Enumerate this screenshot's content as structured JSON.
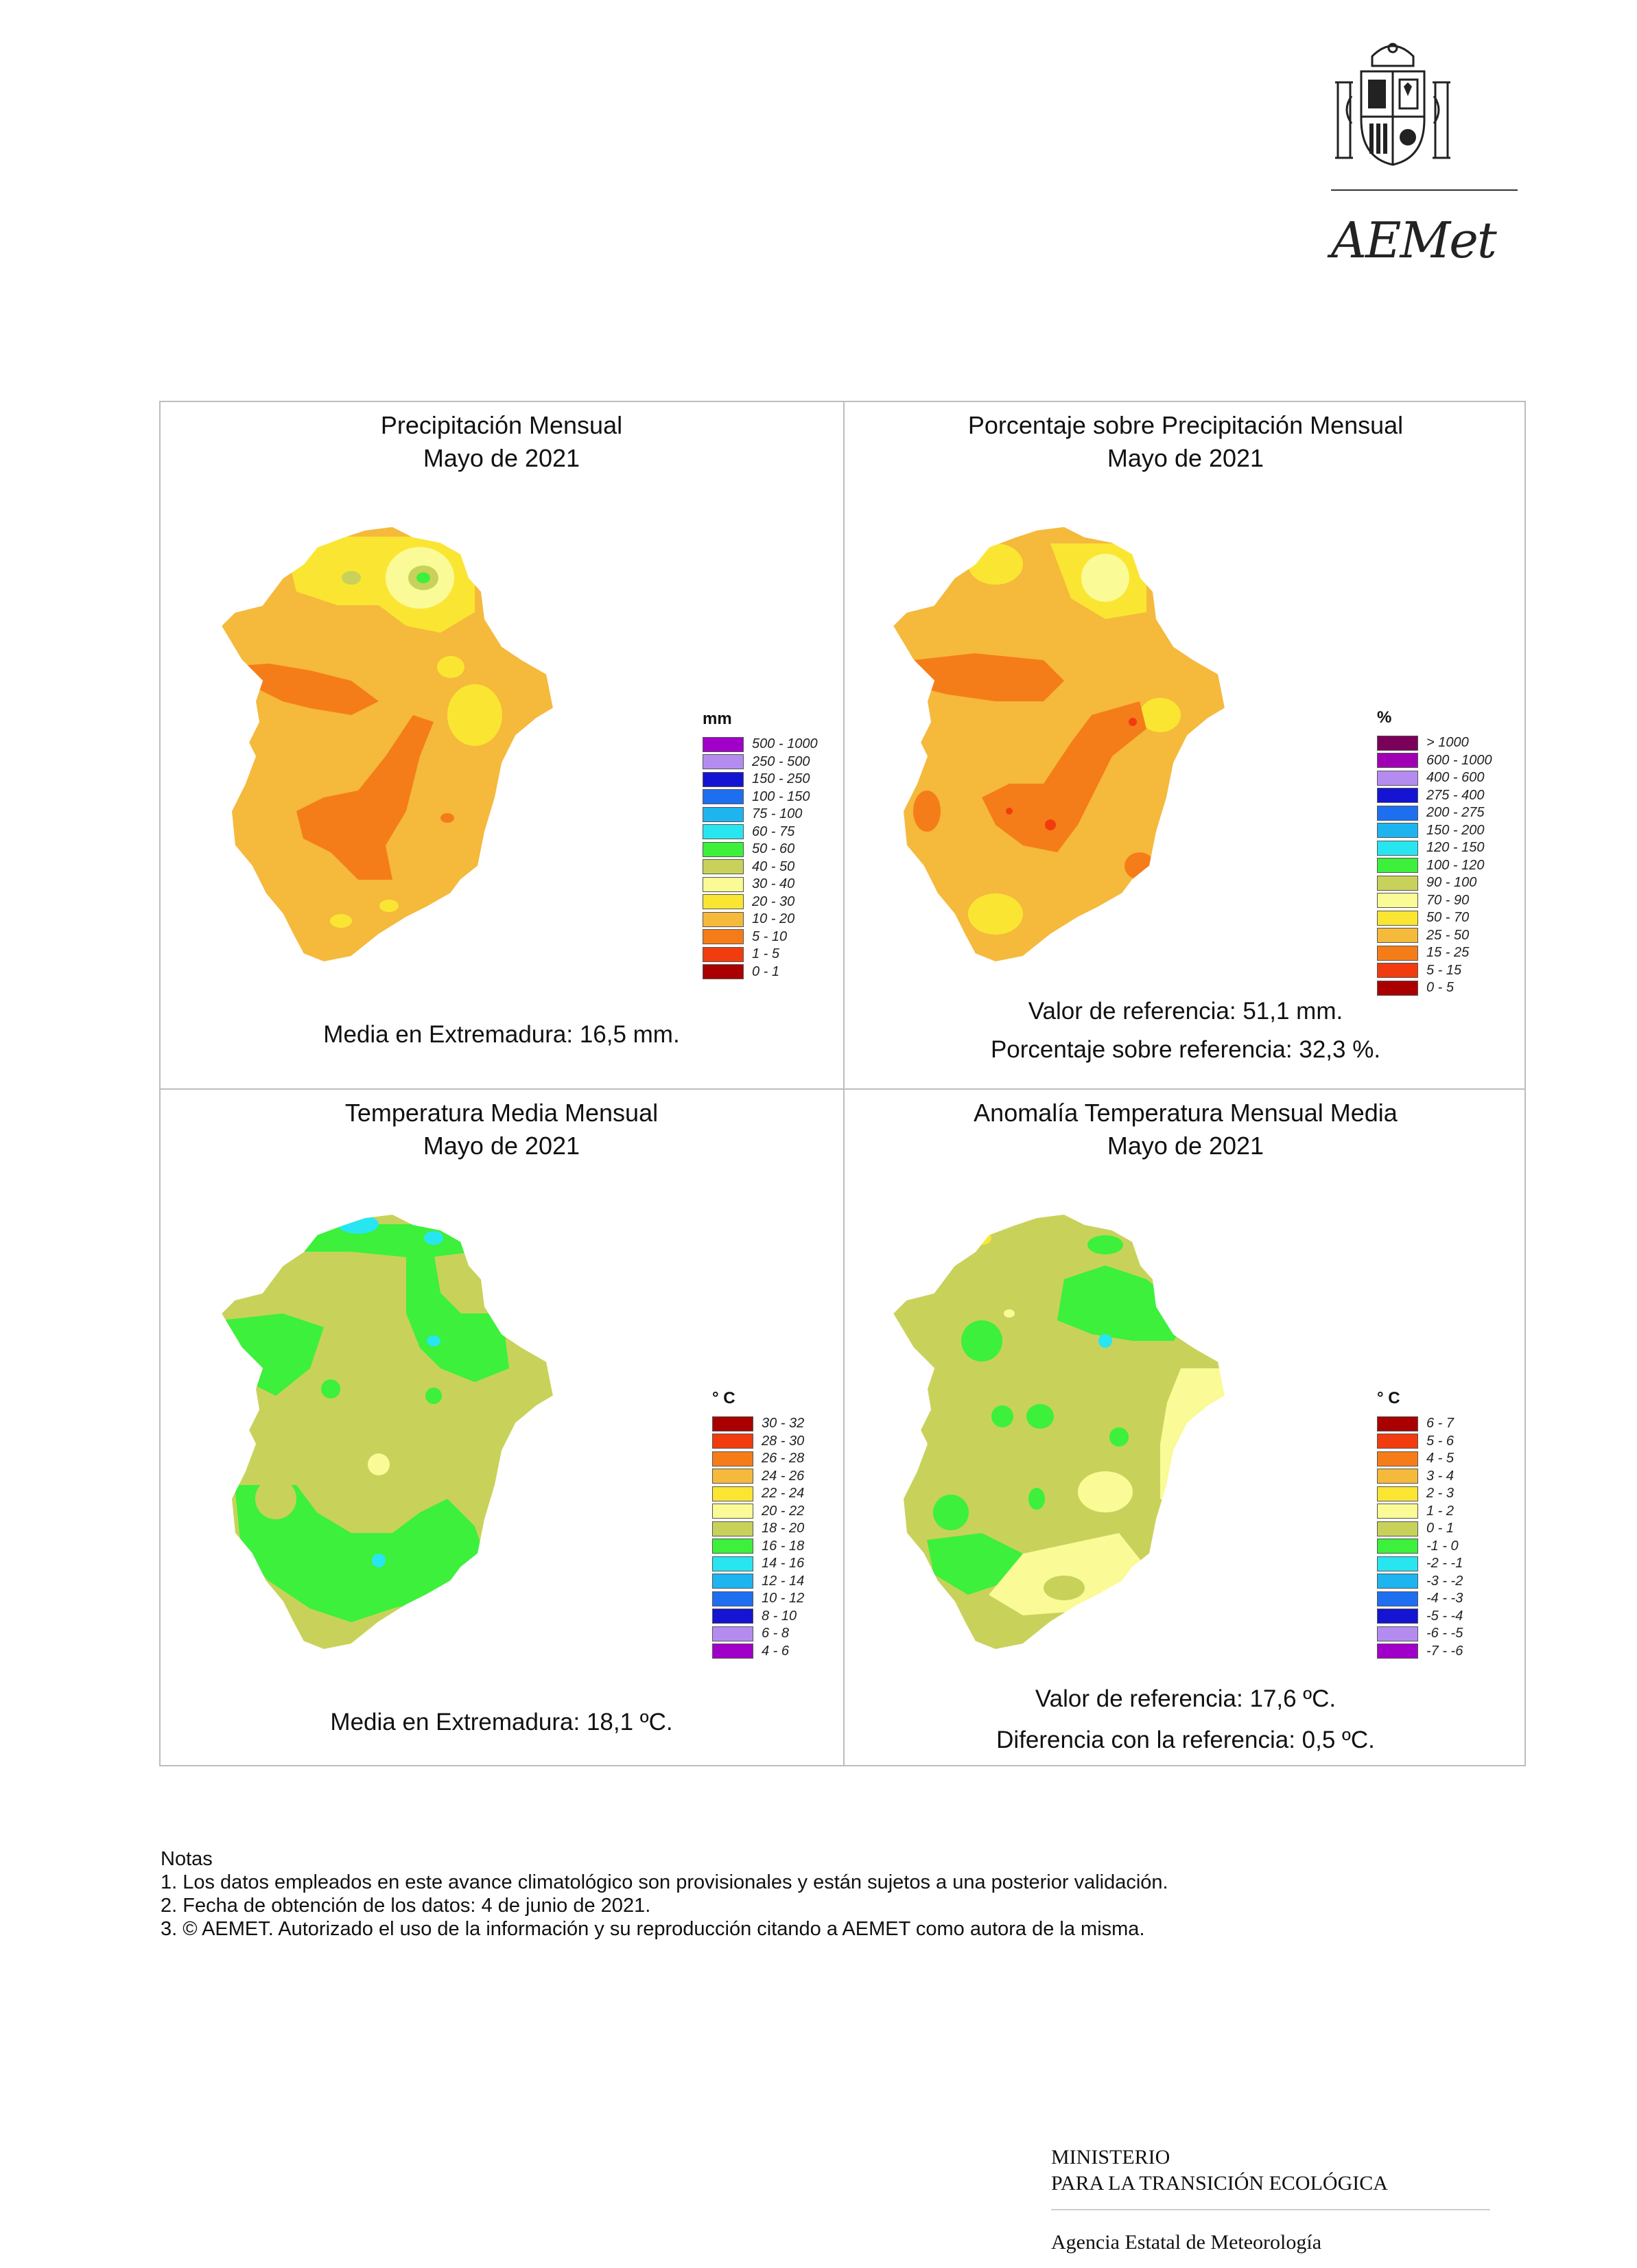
{
  "header": {
    "brand": "AEMet",
    "emblem_icon": "coat-of-arms-of-spain-icon"
  },
  "panels": [
    {
      "title": "Precipitación Mensual",
      "subtitle": "Mayo de 2021",
      "legend_title": "mm",
      "legend": [
        {
          "label": "500 - 1000",
          "color": "#a000c8"
        },
        {
          "label": "250 - 500",
          "color": "#b48cf0"
        },
        {
          "label": "150 - 250",
          "color": "#1414d2"
        },
        {
          "label": "100 - 150",
          "color": "#1e6ef0"
        },
        {
          "label": "75 - 100",
          "color": "#1eb4f0"
        },
        {
          "label": "60 - 75",
          "color": "#28e6f0"
        },
        {
          "label": "50 - 60",
          "color": "#3cf03c"
        },
        {
          "label": "40 - 50",
          "color": "#c8d25a"
        },
        {
          "label": "30 - 40",
          "color": "#fafa96"
        },
        {
          "label": "20 - 30",
          "color": "#fae632"
        },
        {
          "label": "10 - 20",
          "color": "#f5b93c"
        },
        {
          "label": "5 - 10",
          "color": "#f57d19"
        },
        {
          "label": "1 - 5",
          "color": "#f03c0f"
        },
        {
          "label": "0 - 1",
          "color": "#aa0000"
        }
      ],
      "notes": [
        "Media en Extremadura: 16,5 mm."
      ]
    },
    {
      "title": "Porcentaje sobre Precipitación Mensual",
      "subtitle": "Mayo de 2021",
      "legend_title": "%",
      "legend": [
        {
          "label": "> 1000",
          "color": "#7a005a"
        },
        {
          "label": "600 - 1000",
          "color": "#a000b4"
        },
        {
          "label": "400 - 600",
          "color": "#b48cf0"
        },
        {
          "label": "275 - 400",
          "color": "#1414d2"
        },
        {
          "label": "200 - 275",
          "color": "#1e6ef0"
        },
        {
          "label": "150 - 200",
          "color": "#1eb4f0"
        },
        {
          "label": "120 - 150",
          "color": "#28e6f0"
        },
        {
          "label": "100 - 120",
          "color": "#3cf03c"
        },
        {
          "label": "90 - 100",
          "color": "#c8d25a"
        },
        {
          "label": "70 - 90",
          "color": "#fafa96"
        },
        {
          "label": "50 - 70",
          "color": "#fae632"
        },
        {
          "label": "25 - 50",
          "color": "#f5b93c"
        },
        {
          "label": "15 - 25",
          "color": "#f57d19"
        },
        {
          "label": "5 - 15",
          "color": "#f03c0f"
        },
        {
          "label": "0 - 5",
          "color": "#aa0000"
        }
      ],
      "notes": [
        "Valor de referencia: 51,1 mm.",
        "Porcentaje sobre referencia: 32,3 %."
      ]
    },
    {
      "title": "Temperatura Media Mensual",
      "subtitle": "Mayo de 2021",
      "legend_title": "° C",
      "legend": [
        {
          "label": "30 - 32",
          "color": "#aa0000"
        },
        {
          "label": "28 - 30",
          "color": "#f03c0f"
        },
        {
          "label": "26 - 28",
          "color": "#f57d19"
        },
        {
          "label": "24 - 26",
          "color": "#f5b93c"
        },
        {
          "label": "22 - 24",
          "color": "#fae632"
        },
        {
          "label": "20 - 22",
          "color": "#fafa96"
        },
        {
          "label": "18 - 20",
          "color": "#c8d25a"
        },
        {
          "label": "16 - 18",
          "color": "#3cf03c"
        },
        {
          "label": "14 - 16",
          "color": "#28e6f0"
        },
        {
          "label": "12 - 14",
          "color": "#1eb4f0"
        },
        {
          "label": "10 - 12",
          "color": "#1e6ef0"
        },
        {
          "label": "8 - 10",
          "color": "#1414d2"
        },
        {
          "label": "6 - 8",
          "color": "#b48cf0"
        },
        {
          "label": "4 - 6",
          "color": "#a000c8"
        }
      ],
      "notes": [
        "Media en Extremadura: 18,1 ºC."
      ]
    },
    {
      "title": "Anomalía Temperatura Mensual Media",
      "subtitle": "Mayo de 2021",
      "legend_title": "° C",
      "legend": [
        {
          "label": "6 - 7",
          "color": "#aa0000"
        },
        {
          "label": "5 - 6",
          "color": "#f03c0f"
        },
        {
          "label": "4 - 5",
          "color": "#f57d19"
        },
        {
          "label": "3 - 4",
          "color": "#f5b93c"
        },
        {
          "label": "2 - 3",
          "color": "#fae632"
        },
        {
          "label": "1 - 2",
          "color": "#fafa96"
        },
        {
          "label": "0 - 1",
          "color": "#c8d25a"
        },
        {
          "label": "-1 - 0",
          "color": "#3cf03c"
        },
        {
          "label": "-2 - -1",
          "color": "#28e6f0"
        },
        {
          "label": "-3 - -2",
          "color": "#1eb4f0"
        },
        {
          "label": "-4 - -3",
          "color": "#1e6ef0"
        },
        {
          "label": "-5 - -4",
          "color": "#1414d2"
        },
        {
          "label": "-6 - -5",
          "color": "#b48cf0"
        },
        {
          "label": "-7 - -6",
          "color": "#a000c8"
        }
      ],
      "notes": [
        "Valor de referencia: 17,6 ºC.",
        "Diferencia con la referencia: 0,5 ºC."
      ]
    }
  ],
  "notes": {
    "heading": "Notas",
    "items": [
      "1. Los datos empleados en este avance climatológico son provisionales y están sujetos a una posterior validación.",
      "2. Fecha de obtención de los datos: 4 de junio de 2021.",
      "3. © AEMET. Autorizado el uso de la información y su reproducción citando a AEMET como autora de la misma."
    ]
  },
  "footer": {
    "ministry_line1": "MINISTERIO",
    "ministry_line2": "PARA LA TRANSICIÓN ECOLÓGICA",
    "agency": "Agencia Estatal de Meteorología"
  }
}
